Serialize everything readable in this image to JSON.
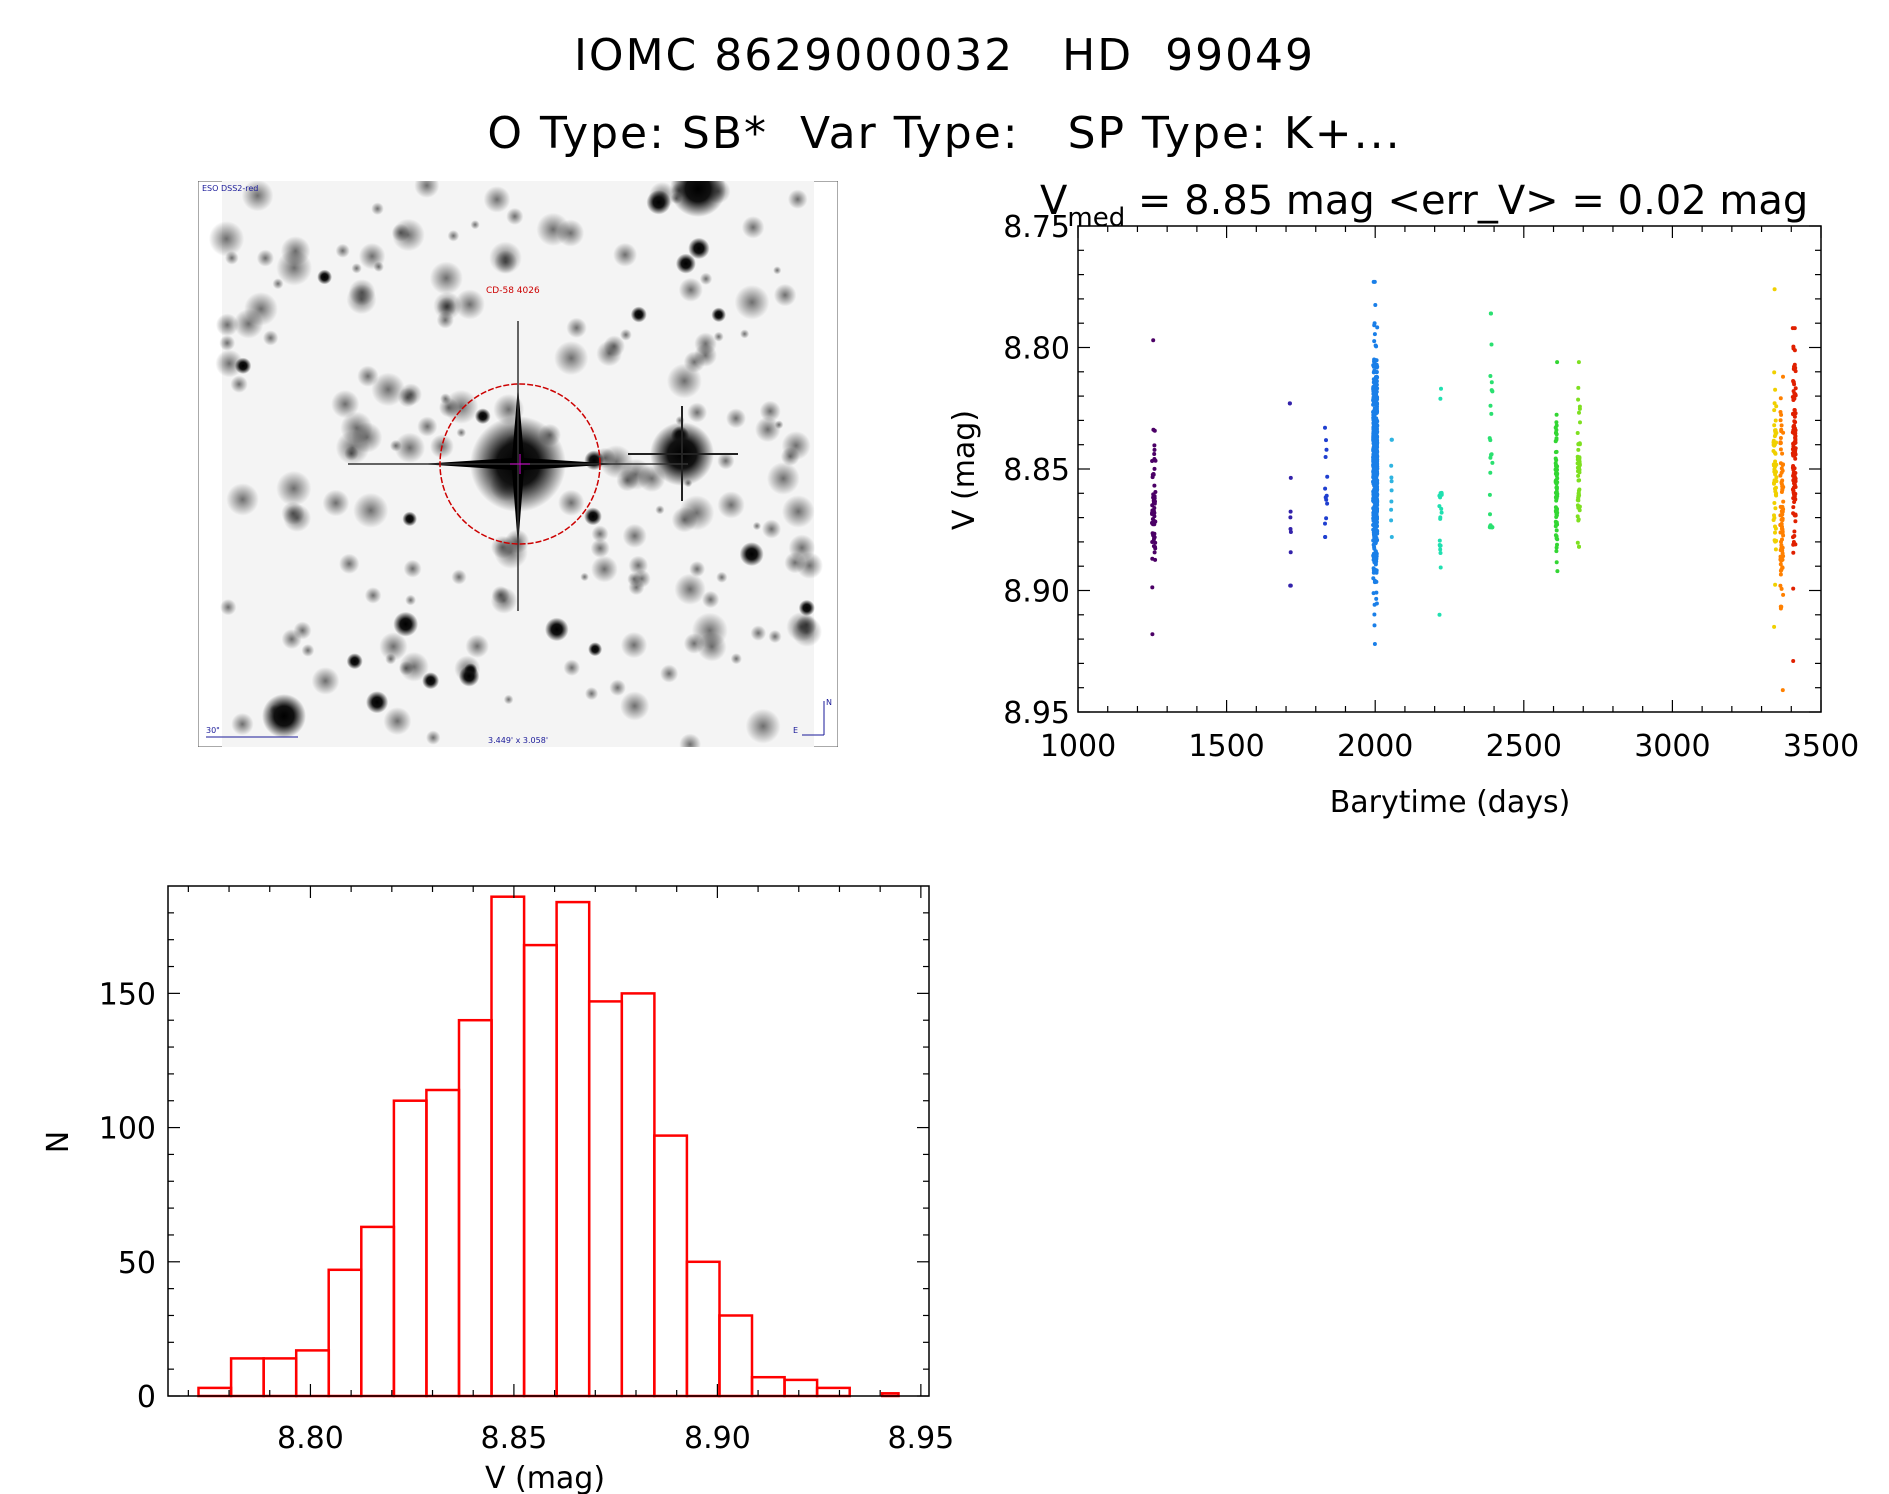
{
  "header": {
    "line1": "IOMC 8629000032   HD  99049",
    "line2": "O Type: SB*  Var Type:   SP Type: K+..."
  },
  "finder_chart": {
    "survey_label": "ESO DSS2-red",
    "object_label": "CD-58 4026",
    "scale_label": "30\"",
    "fov_label": "3.449' x 3.058'",
    "north_label": "N",
    "east_label": "E",
    "circle_color": "#cc0000"
  },
  "chart_data": [
    {
      "type": "scatter",
      "title_prefix": "V",
      "title_subscript": "med",
      "title_rest": " = 8.85 mag <err_V> = 0.02 mag",
      "xlabel": "Barytime (days)",
      "ylabel": "V (mag)",
      "xlim": [
        1000,
        3500
      ],
      "ylim": [
        8.95,
        8.75
      ],
      "xticks": [
        1000,
        1500,
        2000,
        2500,
        3000,
        3500
      ],
      "yticks": [
        8.75,
        8.8,
        8.85,
        8.9,
        8.95
      ],
      "ytick_labels": [
        "8.75",
        "8.80",
        "8.85",
        "8.90",
        "8.95"
      ],
      "groups": [
        {
          "x": 1255,
          "dx": 12,
          "n": 60,
          "mean": 8.865,
          "sd": 0.015,
          "min": 8.797,
          "max": 8.918,
          "color": "#4b0066"
        },
        {
          "x": 1715,
          "dx": 6,
          "n": 10,
          "mean": 8.862,
          "sd": 0.022,
          "min": 8.823,
          "max": 8.898,
          "color": "#3322aa"
        },
        {
          "x": 1835,
          "dx": 8,
          "n": 14,
          "mean": 8.858,
          "sd": 0.01,
          "min": 8.833,
          "max": 8.878,
          "color": "#1f3fd0"
        },
        {
          "x": 2000,
          "dx": 14,
          "n": 700,
          "mean": 8.85,
          "sd": 0.02,
          "min": 8.773,
          "max": 8.922,
          "color": "#1a7fe8"
        },
        {
          "x": 2055,
          "dx": 4,
          "n": 10,
          "mean": 8.86,
          "sd": 0.012,
          "min": 8.838,
          "max": 8.878,
          "color": "#2fb4e0"
        },
        {
          "x": 2220,
          "dx": 8,
          "n": 22,
          "mean": 8.872,
          "sd": 0.018,
          "min": 8.817,
          "max": 8.91,
          "color": "#20e0b0"
        },
        {
          "x": 2390,
          "dx": 10,
          "n": 26,
          "mean": 8.835,
          "sd": 0.025,
          "min": 8.786,
          "max": 8.874,
          "color": "#2ae070"
        },
        {
          "x": 2610,
          "dx": 6,
          "n": 80,
          "mean": 8.855,
          "sd": 0.015,
          "min": 8.806,
          "max": 8.892,
          "color": "#33d633"
        },
        {
          "x": 2685,
          "dx": 8,
          "n": 60,
          "mean": 8.85,
          "sd": 0.015,
          "min": 8.806,
          "max": 8.882,
          "color": "#7ee020"
        },
        {
          "x": 3345,
          "dx": 10,
          "n": 60,
          "mean": 8.852,
          "sd": 0.02,
          "min": 8.776,
          "max": 8.915,
          "color": "#f0d000"
        },
        {
          "x": 3368,
          "dx": 10,
          "n": 90,
          "mean": 8.868,
          "sd": 0.018,
          "min": 8.812,
          "max": 8.941,
          "color": "#ff8000"
        },
        {
          "x": 3410,
          "dx": 10,
          "n": 110,
          "mean": 8.845,
          "sd": 0.022,
          "min": 8.792,
          "max": 8.929,
          "color": "#e02000"
        }
      ]
    },
    {
      "type": "bar",
      "subtype": "histogram",
      "xlabel": "V (mag)",
      "ylabel": "N",
      "xlim": [
        8.765,
        8.952
      ],
      "ylim": [
        0,
        190
      ],
      "xticks": [
        8.8,
        8.85,
        8.9,
        8.95
      ],
      "xtick_labels": [
        "8.80",
        "8.85",
        "8.90",
        "8.95"
      ],
      "yticks": [
        0,
        50,
        100,
        150
      ],
      "bin_edges": [
        8.7725,
        8.7805,
        8.7885,
        8.7965,
        8.8045,
        8.8125,
        8.8205,
        8.8285,
        8.8365,
        8.8445,
        8.8525,
        8.8605,
        8.8685,
        8.8765,
        8.8845,
        8.8925,
        8.9005,
        8.9085,
        8.9165,
        8.9245,
        8.9325,
        8.9405,
        8.9445
      ],
      "values": [
        3,
        14,
        14,
        17,
        47,
        63,
        110,
        114,
        140,
        186,
        168,
        184,
        147,
        150,
        97,
        50,
        30,
        7,
        6,
        3,
        0,
        1
      ],
      "color": "#ff0000"
    }
  ]
}
